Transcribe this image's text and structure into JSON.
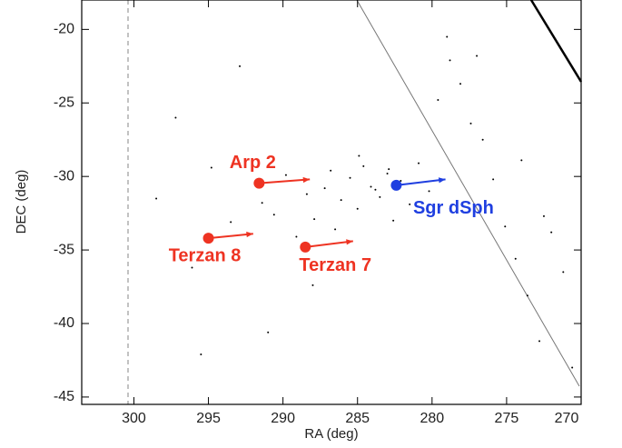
{
  "chart_data": {
    "type": "scatter",
    "xlabel": "RA (deg)",
    "ylabel": "DEC (deg)",
    "xlim": [
      303.5,
      270
    ],
    "ylim": [
      -45.5,
      -18
    ],
    "xticks": [
      300,
      295,
      290,
      285,
      280,
      275,
      270
    ],
    "yticks": [
      -20,
      -25,
      -30,
      -35,
      -40,
      -45
    ],
    "stars": {
      "color": "#000000",
      "x": [
        298.5,
        297.2,
        296.1,
        294.8,
        293.5,
        292.9,
        291.4,
        290.6,
        289.8,
        289.1,
        288.4,
        287.9,
        287.2,
        286.8,
        286.1,
        285.5,
        285.0,
        284.6,
        284.1,
        283.5,
        283.0,
        282.6,
        282.1,
        281.5,
        280.9,
        280.2,
        279.6,
        278.8,
        278.1,
        277.4,
        276.6,
        275.9,
        275.1,
        274.4,
        273.6,
        272.8,
        272.0,
        271.2,
        270.6,
        279.0,
        277.0,
        274.0,
        272.5,
        288.0,
        291.0,
        295.5,
        283.8,
        282.9,
        286.5,
        284.9
      ],
      "y": [
        -31.5,
        -26.0,
        -36.2,
        -29.4,
        -33.1,
        -22.5,
        -31.8,
        -32.6,
        -29.9,
        -34.1,
        -31.2,
        -32.9,
        -30.8,
        -29.6,
        -31.6,
        -30.1,
        -32.2,
        -29.3,
        -30.7,
        -31.4,
        -29.8,
        -33.0,
        -30.3,
        -31.9,
        -29.1,
        -31.0,
        -24.8,
        -22.1,
        -23.7,
        -26.4,
        -27.5,
        -30.2,
        -33.4,
        -35.6,
        -38.1,
        -41.2,
        -33.8,
        -36.5,
        -43.0,
        -20.5,
        -21.8,
        -28.9,
        -32.7,
        -37.4,
        -40.6,
        -42.1,
        -30.9,
        -29.5,
        -33.6,
        -28.6
      ]
    },
    "clusters": [
      {
        "name": "Arp 2",
        "color": "#ee3322",
        "x": 291.6,
        "y": -30.46,
        "x_end": 288.2,
        "y_end": -30.2
      },
      {
        "name": "Terzan 8",
        "color": "#ee3322",
        "x": 295.0,
        "y": -34.2,
        "x_end": 292.0,
        "y_end": -33.9
      },
      {
        "name": "Terzan 7",
        "color": "#ee3322",
        "x": 288.5,
        "y": -34.8,
        "x_end": 285.3,
        "y_end": -34.4
      },
      {
        "name": "Sgr dSph",
        "color": "#1f3fe0",
        "x": 282.4,
        "y": -30.6,
        "x_end": 279.1,
        "y_end": -30.2
      }
    ]
  }
}
